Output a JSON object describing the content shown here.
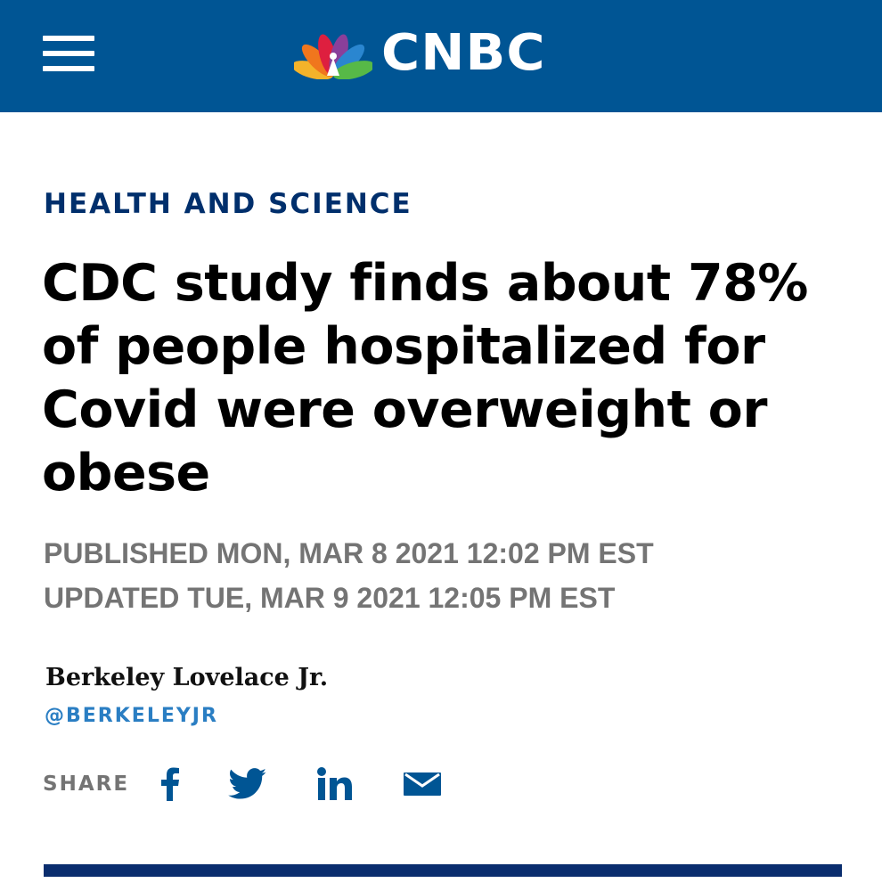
{
  "header": {
    "menu_icon": "hamburger-menu-icon",
    "logo_text": "CNBC",
    "logo_icon": "peacock-logo-icon",
    "background_color": "#005594"
  },
  "article": {
    "section": "HEALTH AND SCIENCE",
    "headline": "CDC study finds about 78% of people hospitalized for Covid were overweight or obese",
    "published": "PUBLISHED MON, MAR 8 2021 12:02 PM EST",
    "updated": "UPDATED TUE, MAR 9 2021 12:05 PM EST",
    "author": "Berkeley Lovelace Jr.",
    "author_handle": "@BERKELEYJR"
  },
  "share": {
    "label": "SHARE",
    "icons": [
      "facebook-icon",
      "twitter-icon",
      "linkedin-icon",
      "email-icon"
    ],
    "icon_color": "#005594"
  },
  "colors": {
    "section_label": "#002f6c",
    "meta_text": "#747474",
    "handle": "#2a7ec3",
    "divider": "#0a2d6e"
  }
}
